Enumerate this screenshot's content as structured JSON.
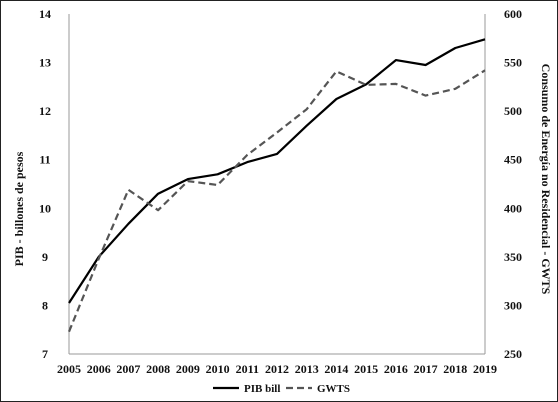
{
  "chart_data": {
    "type": "line",
    "title": "",
    "categories": [
      "2005",
      "2006",
      "2007",
      "2008",
      "2009",
      "2010",
      "2011",
      "2012",
      "2013",
      "2014",
      "2015",
      "2016",
      "2017",
      "2018",
      "2019"
    ],
    "ylabel": "PIB - billones de pesos",
    "ylabel_right": "Consumo de Energía no Residencial - GWTS",
    "ylim": [
      7,
      14
    ],
    "yticks": [
      7,
      8,
      9,
      10,
      11,
      12,
      13,
      14
    ],
    "ylim_right": [
      250,
      600
    ],
    "yticks_right": [
      250,
      300,
      350,
      400,
      450,
      500,
      550,
      600
    ],
    "grid": false,
    "legend_position": "bottom",
    "series": [
      {
        "name": "PIB bill",
        "axis": "left",
        "style": "solid",
        "color": "#000000",
        "values": [
          8.05,
          9.0,
          9.68,
          10.3,
          10.6,
          10.7,
          10.95,
          11.12,
          11.7,
          12.25,
          12.55,
          13.05,
          12.95,
          13.3,
          13.48
        ]
      },
      {
        "name": "GWTS",
        "axis": "right",
        "style": "dashed",
        "color": "#555555",
        "values": [
          273,
          348,
          419,
          398,
          428,
          424,
          455,
          478,
          502,
          541,
          527,
          528,
          516,
          523,
          542
        ]
      }
    ]
  }
}
